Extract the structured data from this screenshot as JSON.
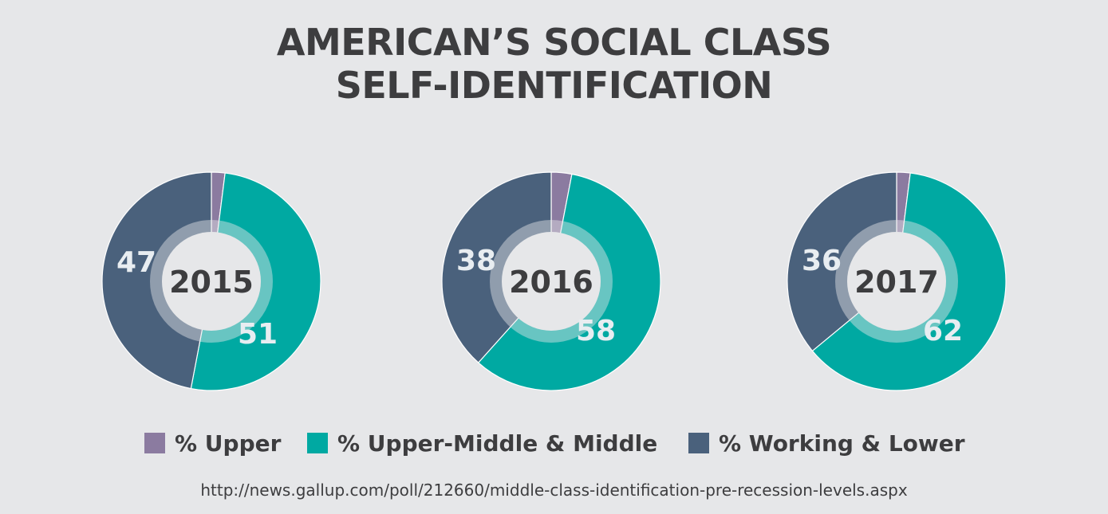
{
  "title_line1": "AMERICAN’S SOCIAL CLASS",
  "title_line2": "SELF-IDENTIFICATION",
  "colors": {
    "upper": "#8b7ba0",
    "middle": "#00a9a2",
    "lower": "#4a617c",
    "background": "#e6e7e9",
    "text": "#3d3d3f",
    "label_light": "#e8edf1"
  },
  "legend": [
    {
      "label": "% Upper",
      "color": "#8b7ba0"
    },
    {
      "label": "% Upper-Middle & Middle",
      "color": "#00a9a2"
    },
    {
      "label": "% Working & Lower",
      "color": "#4a617c"
    }
  ],
  "chart_data": [
    {
      "type": "pie",
      "center_label": "2015",
      "slices": [
        {
          "name": "% Upper",
          "value": 2,
          "label": ""
        },
        {
          "name": "% Upper-Middle & Middle",
          "value": 51,
          "label": "51"
        },
        {
          "name": "% Working & Lower",
          "value": 47,
          "label": "47"
        }
      ]
    },
    {
      "type": "pie",
      "center_label": "2016",
      "slices": [
        {
          "name": "% Upper",
          "value": 3,
          "label": ""
        },
        {
          "name": "% Upper-Middle & Middle",
          "value": 58,
          "label": "58"
        },
        {
          "name": "% Working & Lower",
          "value": 38,
          "label": "38"
        }
      ]
    },
    {
      "type": "pie",
      "center_label": "2017",
      "slices": [
        {
          "name": "% Upper",
          "value": 2,
          "label": ""
        },
        {
          "name": "% Upper-Middle & Middle",
          "value": 62,
          "label": "62"
        },
        {
          "name": "% Working & Lower",
          "value": 36,
          "label": "36"
        }
      ]
    }
  ],
  "source": "http://news.gallup.com/poll/212660/middle-class-identification-pre-recession-levels.aspx"
}
